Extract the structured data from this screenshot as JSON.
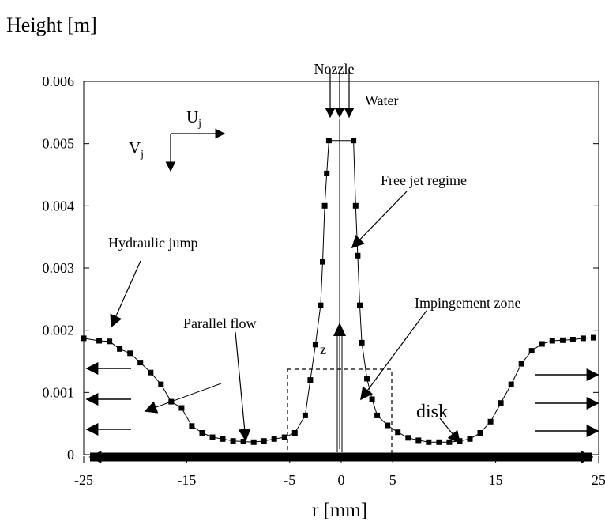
{
  "chart_data": {
    "type": "scatter",
    "title": "",
    "ylabel": "Height [m]",
    "xlabel": "r [mm]",
    "xlim": [
      -25,
      25
    ],
    "ylim": [
      0,
      0.006
    ],
    "x_ticks": [
      -25,
      -15,
      -5,
      0,
      5,
      15,
      25
    ],
    "x_tick_labels": [
      "-25",
      "-15",
      "-5",
      "0",
      "5",
      "15",
      "25"
    ],
    "y_ticks": [
      0,
      0.001,
      0.002,
      0.003,
      0.004,
      0.005,
      0.006
    ],
    "y_tick_labels": [
      "0",
      "0.001",
      "0.002",
      "0.003",
      "0.004",
      "0.005",
      "0.006"
    ],
    "grid": false,
    "legend": "none",
    "series": [
      {
        "marker": "square",
        "line": true,
        "x": [
          -25,
          -23.5,
          -22.5,
          -21.5,
          -20.5,
          -19.5,
          -18.5,
          -17.5,
          -16.5,
          -15.5,
          -14.5,
          -13.5,
          -12.5,
          -11.5,
          -10.5,
          -9.5,
          -8.5,
          -7.5,
          -6.5,
          -5.5,
          -4.5,
          -3.5,
          -3,
          -2.5,
          -2,
          -1.8,
          -1.6,
          -1.4,
          -1.2,
          1.2,
          1.4,
          1.6,
          1.8,
          2,
          2.5,
          3,
          3.5,
          4.5,
          5.5,
          6.5,
          7.5,
          8.5,
          9.5,
          10.5,
          11.5,
          12.5,
          13.5,
          14.5,
          15.5,
          16.5,
          17.5,
          18.5,
          19.5,
          20.5,
          21.5,
          22.5,
          23.5,
          24.5
        ],
        "y": [
          0.00187,
          0.00183,
          0.00182,
          0.0017,
          0.00163,
          0.00148,
          0.00132,
          0.00113,
          0.00085,
          0.00075,
          0.00046,
          0.00035,
          0.00028,
          0.00025,
          0.00022,
          0.00021,
          0.0002,
          0.00022,
          0.00025,
          0.00028,
          0.00035,
          0.00063,
          0.0012,
          0.00177,
          0.0024,
          0.0031,
          0.004,
          0.00452,
          0.00505,
          0.00505,
          0.004,
          0.0032,
          0.0024,
          0.0018,
          0.00122,
          0.00089,
          0.00063,
          0.00047,
          0.00036,
          0.00027,
          0.00023,
          0.0002,
          0.0002,
          0.0002,
          0.00022,
          0.00025,
          0.00035,
          0.00053,
          0.00083,
          0.00113,
          0.00146,
          0.00167,
          0.00178,
          0.00183,
          0.00184,
          0.00185,
          0.00187,
          0.00188
        ]
      }
    ],
    "annotations": [
      {
        "text": "Nozzle"
      },
      {
        "text": "Water"
      },
      {
        "text": "U",
        "subscript": "j"
      },
      {
        "text": "V",
        "subscript": "j"
      },
      {
        "text": "Free jet regime"
      },
      {
        "text": "Hydraulic jump"
      },
      {
        "text": "Parallel flow"
      },
      {
        "text": "Impingement zone"
      },
      {
        "text": "disk"
      },
      {
        "text": "z"
      }
    ]
  }
}
